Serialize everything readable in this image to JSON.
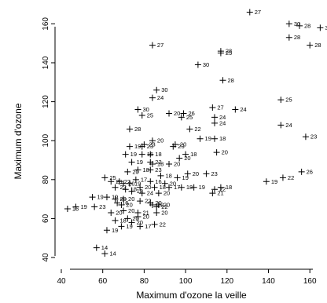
{
  "chart_data": {
    "type": "scatter",
    "title": "",
    "xlabel": "Maximum d'ozone la veille",
    "ylabel": "Maximum d'ozone",
    "xlim": [
      40,
      166
    ],
    "ylim": [
      38,
      167
    ],
    "xticks": [
      "40",
      "60",
      "80",
      "100",
      "120",
      "140",
      "160"
    ],
    "yticks": [
      "40",
      "60",
      "80",
      "100",
      "120",
      "140",
      "160"
    ],
    "grid": false,
    "marker": "+",
    "point_labels_shown": true,
    "points": [
      {
        "x": 131,
        "y": 166,
        "label": "27"
      },
      {
        "x": 150,
        "y": 160,
        "label": "30"
      },
      {
        "x": 155,
        "y": 159,
        "label": "28"
      },
      {
        "x": 165,
        "y": 158,
        "label": "30"
      },
      {
        "x": 150,
        "y": 153,
        "label": "28"
      },
      {
        "x": 160,
        "y": 149,
        "label": "28"
      },
      {
        "x": 84,
        "y": 149,
        "label": "27"
      },
      {
        "x": 117,
        "y": 146,
        "label": "28"
      },
      {
        "x": 117,
        "y": 145,
        "label": "25"
      },
      {
        "x": 106,
        "y": 139,
        "label": "30"
      },
      {
        "x": 118,
        "y": 131,
        "label": "28"
      },
      {
        "x": 86,
        "y": 126,
        "label": "30"
      },
      {
        "x": 84,
        "y": 122,
        "label": "24"
      },
      {
        "x": 146,
        "y": 121,
        "label": "25"
      },
      {
        "x": 77,
        "y": 116,
        "label": "30"
      },
      {
        "x": 79,
        "y": 113,
        "label": "25"
      },
      {
        "x": 113,
        "y": 117,
        "label": "27"
      },
      {
        "x": 92,
        "y": 114,
        "label": "20"
      },
      {
        "x": 99,
        "y": 114,
        "label": "26"
      },
      {
        "x": 98,
        "y": 112,
        "label": "25"
      },
      {
        "x": 124,
        "y": 116,
        "label": "24"
      },
      {
        "x": 114,
        "y": 112,
        "label": "24"
      },
      {
        "x": 114,
        "y": 109,
        "label": "24"
      },
      {
        "x": 146,
        "y": 108,
        "label": "24"
      },
      {
        "x": 102,
        "y": 106,
        "label": "22"
      },
      {
        "x": 73,
        "y": 106,
        "label": "28"
      },
      {
        "x": 84,
        "y": 100,
        "label": "20"
      },
      {
        "x": 107,
        "y": 101,
        "label": "19"
      },
      {
        "x": 114,
        "y": 101,
        "label": "18"
      },
      {
        "x": 158,
        "y": 102,
        "label": "23"
      },
      {
        "x": 80,
        "y": 98,
        "label": "23"
      },
      {
        "x": 79,
        "y": 97,
        "label": "23"
      },
      {
        "x": 73,
        "y": 97,
        "label": "19"
      },
      {
        "x": 95,
        "y": 98,
        "label": "20"
      },
      {
        "x": 94,
        "y": 97,
        "label": "23"
      },
      {
        "x": 71,
        "y": 93,
        "label": "19"
      },
      {
        "x": 79,
        "y": 93,
        "label": "16"
      },
      {
        "x": 83,
        "y": 93,
        "label": "18"
      },
      {
        "x": 115,
        "y": 94,
        "label": "20"
      },
      {
        "x": 100,
        "y": 93,
        "label": "18"
      },
      {
        "x": 97,
        "y": 91,
        "label": "20"
      },
      {
        "x": 74,
        "y": 89,
        "label": "19"
      },
      {
        "x": 83,
        "y": 89,
        "label": "22"
      },
      {
        "x": 84,
        "y": 88,
        "label": "18"
      },
      {
        "x": 92,
        "y": 88,
        "label": "20"
      },
      {
        "x": 77,
        "y": 85,
        "label": "18"
      },
      {
        "x": 72,
        "y": 84,
        "label": "20"
      },
      {
        "x": 83,
        "y": 85,
        "label": "23"
      },
      {
        "x": 88,
        "y": 82,
        "label": "18"
      },
      {
        "x": 101,
        "y": 83,
        "label": "20"
      },
      {
        "x": 110,
        "y": 83,
        "label": "23"
      },
      {
        "x": 96,
        "y": 81,
        "label": "19"
      },
      {
        "x": 61,
        "y": 81,
        "label": "25"
      },
      {
        "x": 64,
        "y": 79,
        "label": "20"
      },
      {
        "x": 68,
        "y": 79,
        "label": "22"
      },
      {
        "x": 76,
        "y": 80,
        "label": "17"
      },
      {
        "x": 73,
        "y": 78,
        "label": "19"
      },
      {
        "x": 83,
        "y": 79,
        "label": "16"
      },
      {
        "x": 85,
        "y": 76,
        "label": "18"
      },
      {
        "x": 90,
        "y": 78,
        "label": "20"
      },
      {
        "x": 92,
        "y": 76,
        "label": "17"
      },
      {
        "x": 117,
        "y": 76,
        "label": "18"
      },
      {
        "x": 104,
        "y": 76,
        "label": "19"
      },
      {
        "x": 98,
        "y": 76,
        "label": "18"
      },
      {
        "x": 114,
        "y": 75,
        "label": "22"
      },
      {
        "x": 147,
        "y": 81,
        "label": "22"
      },
      {
        "x": 156,
        "y": 84,
        "label": "26"
      },
      {
        "x": 139,
        "y": 79,
        "label": "19"
      },
      {
        "x": 113,
        "y": 73,
        "label": "21"
      },
      {
        "x": 70,
        "y": 78,
        "label": "20"
      },
      {
        "x": 66,
        "y": 76,
        "label": "22"
      },
      {
        "x": 71,
        "y": 75,
        "label": "18"
      },
      {
        "x": 74,
        "y": 74,
        "label": "18"
      },
      {
        "x": 78,
        "y": 76,
        "label": "20"
      },
      {
        "x": 79,
        "y": 73,
        "label": "24"
      },
      {
        "x": 87,
        "y": 73,
        "label": "20"
      },
      {
        "x": 55,
        "y": 71,
        "label": "19"
      },
      {
        "x": 62,
        "y": 71,
        "label": "19"
      },
      {
        "x": 66,
        "y": 70,
        "label": "20"
      },
      {
        "x": 70,
        "y": 70,
        "label": "20"
      },
      {
        "x": 67,
        "y": 68,
        "label": "16"
      },
      {
        "x": 69,
        "y": 67,
        "label": "20"
      },
      {
        "x": 78,
        "y": 69,
        "label": "22"
      },
      {
        "x": 84,
        "y": 67,
        "label": "22"
      },
      {
        "x": 87,
        "y": 67,
        "label": "20"
      },
      {
        "x": 86,
        "y": 66,
        "label": "22"
      },
      {
        "x": 83,
        "y": 68,
        "label": "20"
      },
      {
        "x": 43,
        "y": 65,
        "label": "16"
      },
      {
        "x": 47,
        "y": 66,
        "label": "19"
      },
      {
        "x": 56,
        "y": 66,
        "label": "23"
      },
      {
        "x": 70,
        "y": 64,
        "label": "20"
      },
      {
        "x": 64,
        "y": 63,
        "label": "20"
      },
      {
        "x": 77,
        "y": 63,
        "label": "21"
      },
      {
        "x": 86,
        "y": 63,
        "label": "20"
      },
      {
        "x": 77,
        "y": 61,
        "label": "20"
      },
      {
        "x": 72,
        "y": 60,
        "label": "20"
      },
      {
        "x": 66,
        "y": 59,
        "label": "18"
      },
      {
        "x": 74,
        "y": 58,
        "label": "20"
      },
      {
        "x": 69,
        "y": 56,
        "label": "19"
      },
      {
        "x": 78,
        "y": 56,
        "label": "17"
      },
      {
        "x": 85,
        "y": 57,
        "label": "22"
      },
      {
        "x": 62,
        "y": 54,
        "label": "19"
      },
      {
        "x": 57,
        "y": 45,
        "label": "14"
      },
      {
        "x": 61,
        "y": 42,
        "label": "14"
      }
    ]
  }
}
